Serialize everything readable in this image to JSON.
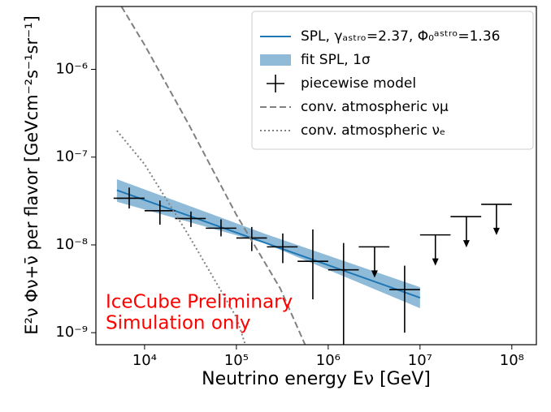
{
  "chart_data": {
    "type": "line",
    "xlabel": "Neutrino energy Eν [GeV]",
    "ylabel": "E²ν Φν+ν̄ per flavor [GeVcm⁻²s⁻¹sr⁻¹]",
    "xscale": "log",
    "yscale": "log",
    "xlim": [
      2950,
      185000000
    ],
    "ylim": [
      7.3e-10,
      5.2e-06
    ],
    "xticks": [
      {
        "value": 10000,
        "label": "10⁴"
      },
      {
        "value": 100000,
        "label": "10⁵"
      },
      {
        "value": 1000000,
        "label": "10⁶"
      },
      {
        "value": 10000000,
        "label": "10⁷"
      },
      {
        "value": 100000000,
        "label": "10⁸"
      }
    ],
    "yticks": [
      {
        "value": 1e-09,
        "label": "10⁻⁹"
      },
      {
        "value": 1e-08,
        "label": "10⁻⁸"
      },
      {
        "value": 1e-07,
        "label": "10⁻⁷"
      },
      {
        "value": 1e-06,
        "label": "10⁻⁶"
      }
    ],
    "legend": "upper right",
    "annotations": [
      "IceCube Preliminary",
      "Simulation only"
    ],
    "annotation_color": "#ff0000",
    "series": [
      {
        "name": "SPL, γₐₛₜᵣₒ=2.37, Φ₀ᵃˢᵗʳᵒ=1.36",
        "color": "#1f77b4",
        "style": "solid",
        "x": [
          5000,
          10000000
        ],
        "values": [
          4.2e-08,
          2.5e-09
        ]
      },
      {
        "name": "fit SPL, 1σ",
        "color": "#8fbbd9",
        "style": "band",
        "x": [
          5000,
          200000,
          10000000
        ],
        "lower": [
          3.1e-08,
          1.05e-08,
          1.9e-09
        ],
        "upper": [
          5.6e-08,
          1.35e-08,
          3.3e-09
        ]
      },
      {
        "name": "piecewise model",
        "color": "#000000",
        "style": "errorbar",
        "x": [
          6800,
          14700,
          32000,
          68000,
          147000,
          320000,
          680000,
          1470000,
          3200000,
          6800000,
          14700000,
          32000000,
          68000000
        ],
        "x_low": [
          4600,
          10000,
          21500,
          46400,
          100000,
          215000,
          464000,
          1000000,
          2150000,
          4640000,
          10000000,
          21500000,
          46400000
        ],
        "x_high": [
          10000,
          21500,
          46400,
          100000,
          215000,
          464000,
          1000000,
          2150000,
          4640000,
          10000000,
          21500000,
          46400000,
          100000000
        ],
        "values": [
          3.4e-08,
          2.45e-08,
          2e-08,
          1.55e-08,
          1.2e-08,
          9.5e-09,
          6.5e-09,
          5.2e-09,
          9.5e-09,
          3.1e-09,
          1.3e-08,
          2.1e-08,
          2.9e-08
        ],
        "err_low": [
          2.6e-08,
          1.7e-08,
          1.6e-08,
          1.25e-08,
          8.5e-09,
          6.2e-09,
          2.4e-09,
          5e-10,
          null,
          1e-09,
          null,
          null,
          null
        ],
        "err_high": [
          4.5e-08,
          3.2e-08,
          2.4e-08,
          1.95e-08,
          1.6e-08,
          1.35e-08,
          1.5e-08,
          1.05e-08,
          null,
          5.8e-09,
          null,
          null,
          null
        ],
        "upper_limit": [
          false,
          false,
          false,
          false,
          false,
          false,
          false,
          false,
          true,
          false,
          true,
          true,
          true
        ]
      },
      {
        "name": "conv. atmospheric νμ",
        "color": "#808080",
        "style": "dashed",
        "x": [
          5600,
          10000,
          30000,
          100000,
          300000,
          560000
        ],
        "values": [
          5.2e-06,
          1.9e-06,
          2.4e-07,
          2.2e-08,
          3.2e-09,
          7.3e-10
        ]
      },
      {
        "name": "conv. atmospheric νₑ",
        "color": "#808080",
        "style": "dotted",
        "x": [
          5000,
          10000,
          30000,
          100000,
          125000
        ],
        "values": [
          2e-07,
          8.3e-08,
          1.3e-08,
          1.5e-09,
          7.3e-10
        ]
      }
    ]
  }
}
